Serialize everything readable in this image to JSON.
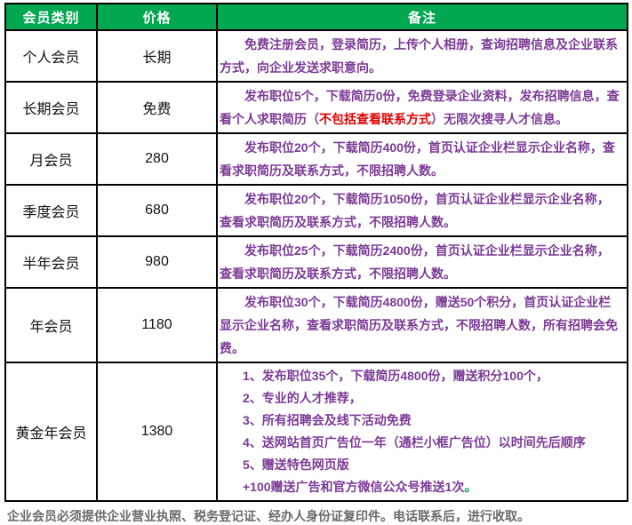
{
  "colors": {
    "header_bg": "#00A650",
    "header_text": "#FFFFFF",
    "note_purple": "#7B3A96",
    "highlight_red": "#E00000",
    "highlight_green": "#00A650",
    "footer_gray": "#6A6A6A",
    "border_black": "#000000"
  },
  "table": {
    "headers": [
      "会员类别",
      "价格",
      "备注"
    ],
    "rows": [
      {
        "category": "个人会员",
        "price": "长期",
        "note_type": "paragraph",
        "note": [
          {
            "text": "免费注册会员，登录简历，上传个人相册，查询招聘信息及企业联系方式，向企业发送求职意向。",
            "color": "note_purple"
          }
        ]
      },
      {
        "category": "长期会员",
        "price": "免费",
        "note_type": "paragraph",
        "note": [
          {
            "text": "发布职位5个，下载简历0份，免费登录企业资料，发布招聘信息，查看个人求职简历（",
            "color": "note_purple"
          },
          {
            "text": "不包括查看联系方式",
            "color": "highlight_red"
          },
          {
            "text": "）无限次搜寻人才信息。",
            "color": "note_purple"
          }
        ]
      },
      {
        "category": "月会员",
        "price": "280",
        "note_type": "paragraph",
        "note": [
          {
            "text": "发布职位20个，下载简历400份，首页认证企业栏显示企业名称，查看求职简历及联系方式，不限招聘人数。",
            "color": "note_purple"
          }
        ]
      },
      {
        "category": "季度会员",
        "price": "680",
        "note_type": "paragraph",
        "note": [
          {
            "text": "发布职位20个，下载简历1050份，首页认证企业栏显示企业名称，查看求职简历及联系方式，不限招聘人数。",
            "color": "note_purple"
          }
        ]
      },
      {
        "category": "半年会员",
        "price": "980",
        "note_type": "paragraph",
        "note": [
          {
            "text": "发布职位25个，下载简历2400份，首页认证企业栏显示企业名称，查看求职简历及联系方式，不限招聘人数。",
            "color": "note_purple"
          }
        ]
      },
      {
        "category": "年会员",
        "price": "1180",
        "note_type": "paragraph",
        "note": [
          {
            "text": "发布职位30个，下载简历4800份，赠送50个积分，首页认证企业栏显示企业名称，查看求职简历及联系方式，不限招聘人数，所有招聘会免费。",
            "color": "note_purple"
          }
        ]
      },
      {
        "category": "黄金年会员",
        "price": "1380",
        "note_type": "lines",
        "note_lines": [
          [
            {
              "text": "1、发布职位35个，下载简历4800份，赠送积分100个，",
              "color": "note_purple"
            }
          ],
          [
            {
              "text": "2、专业的人才推荐，",
              "color": "note_purple"
            }
          ],
          [
            {
              "text": "3、所有招聘会及线下活动免费",
              "color": "note_purple"
            }
          ],
          [
            {
              "text": "4、送网站首页广告位一年（通栏小框广告位）以时间先后顺序",
              "color": "note_purple"
            }
          ],
          [
            {
              "text": "5、赠送特色网页版",
              "color": "note_purple"
            }
          ],
          [
            {
              "text": "+100赠送广告和官方微信公众号推送1次",
              "color": "note_purple"
            },
            {
              "text": "。",
              "color": "highlight_green"
            }
          ]
        ]
      }
    ]
  },
  "footer": {
    "text": "企业会员必须提供企业营业执照、税务登记证、经办人身份证复印件。电话联系后，进行收取。"
  }
}
